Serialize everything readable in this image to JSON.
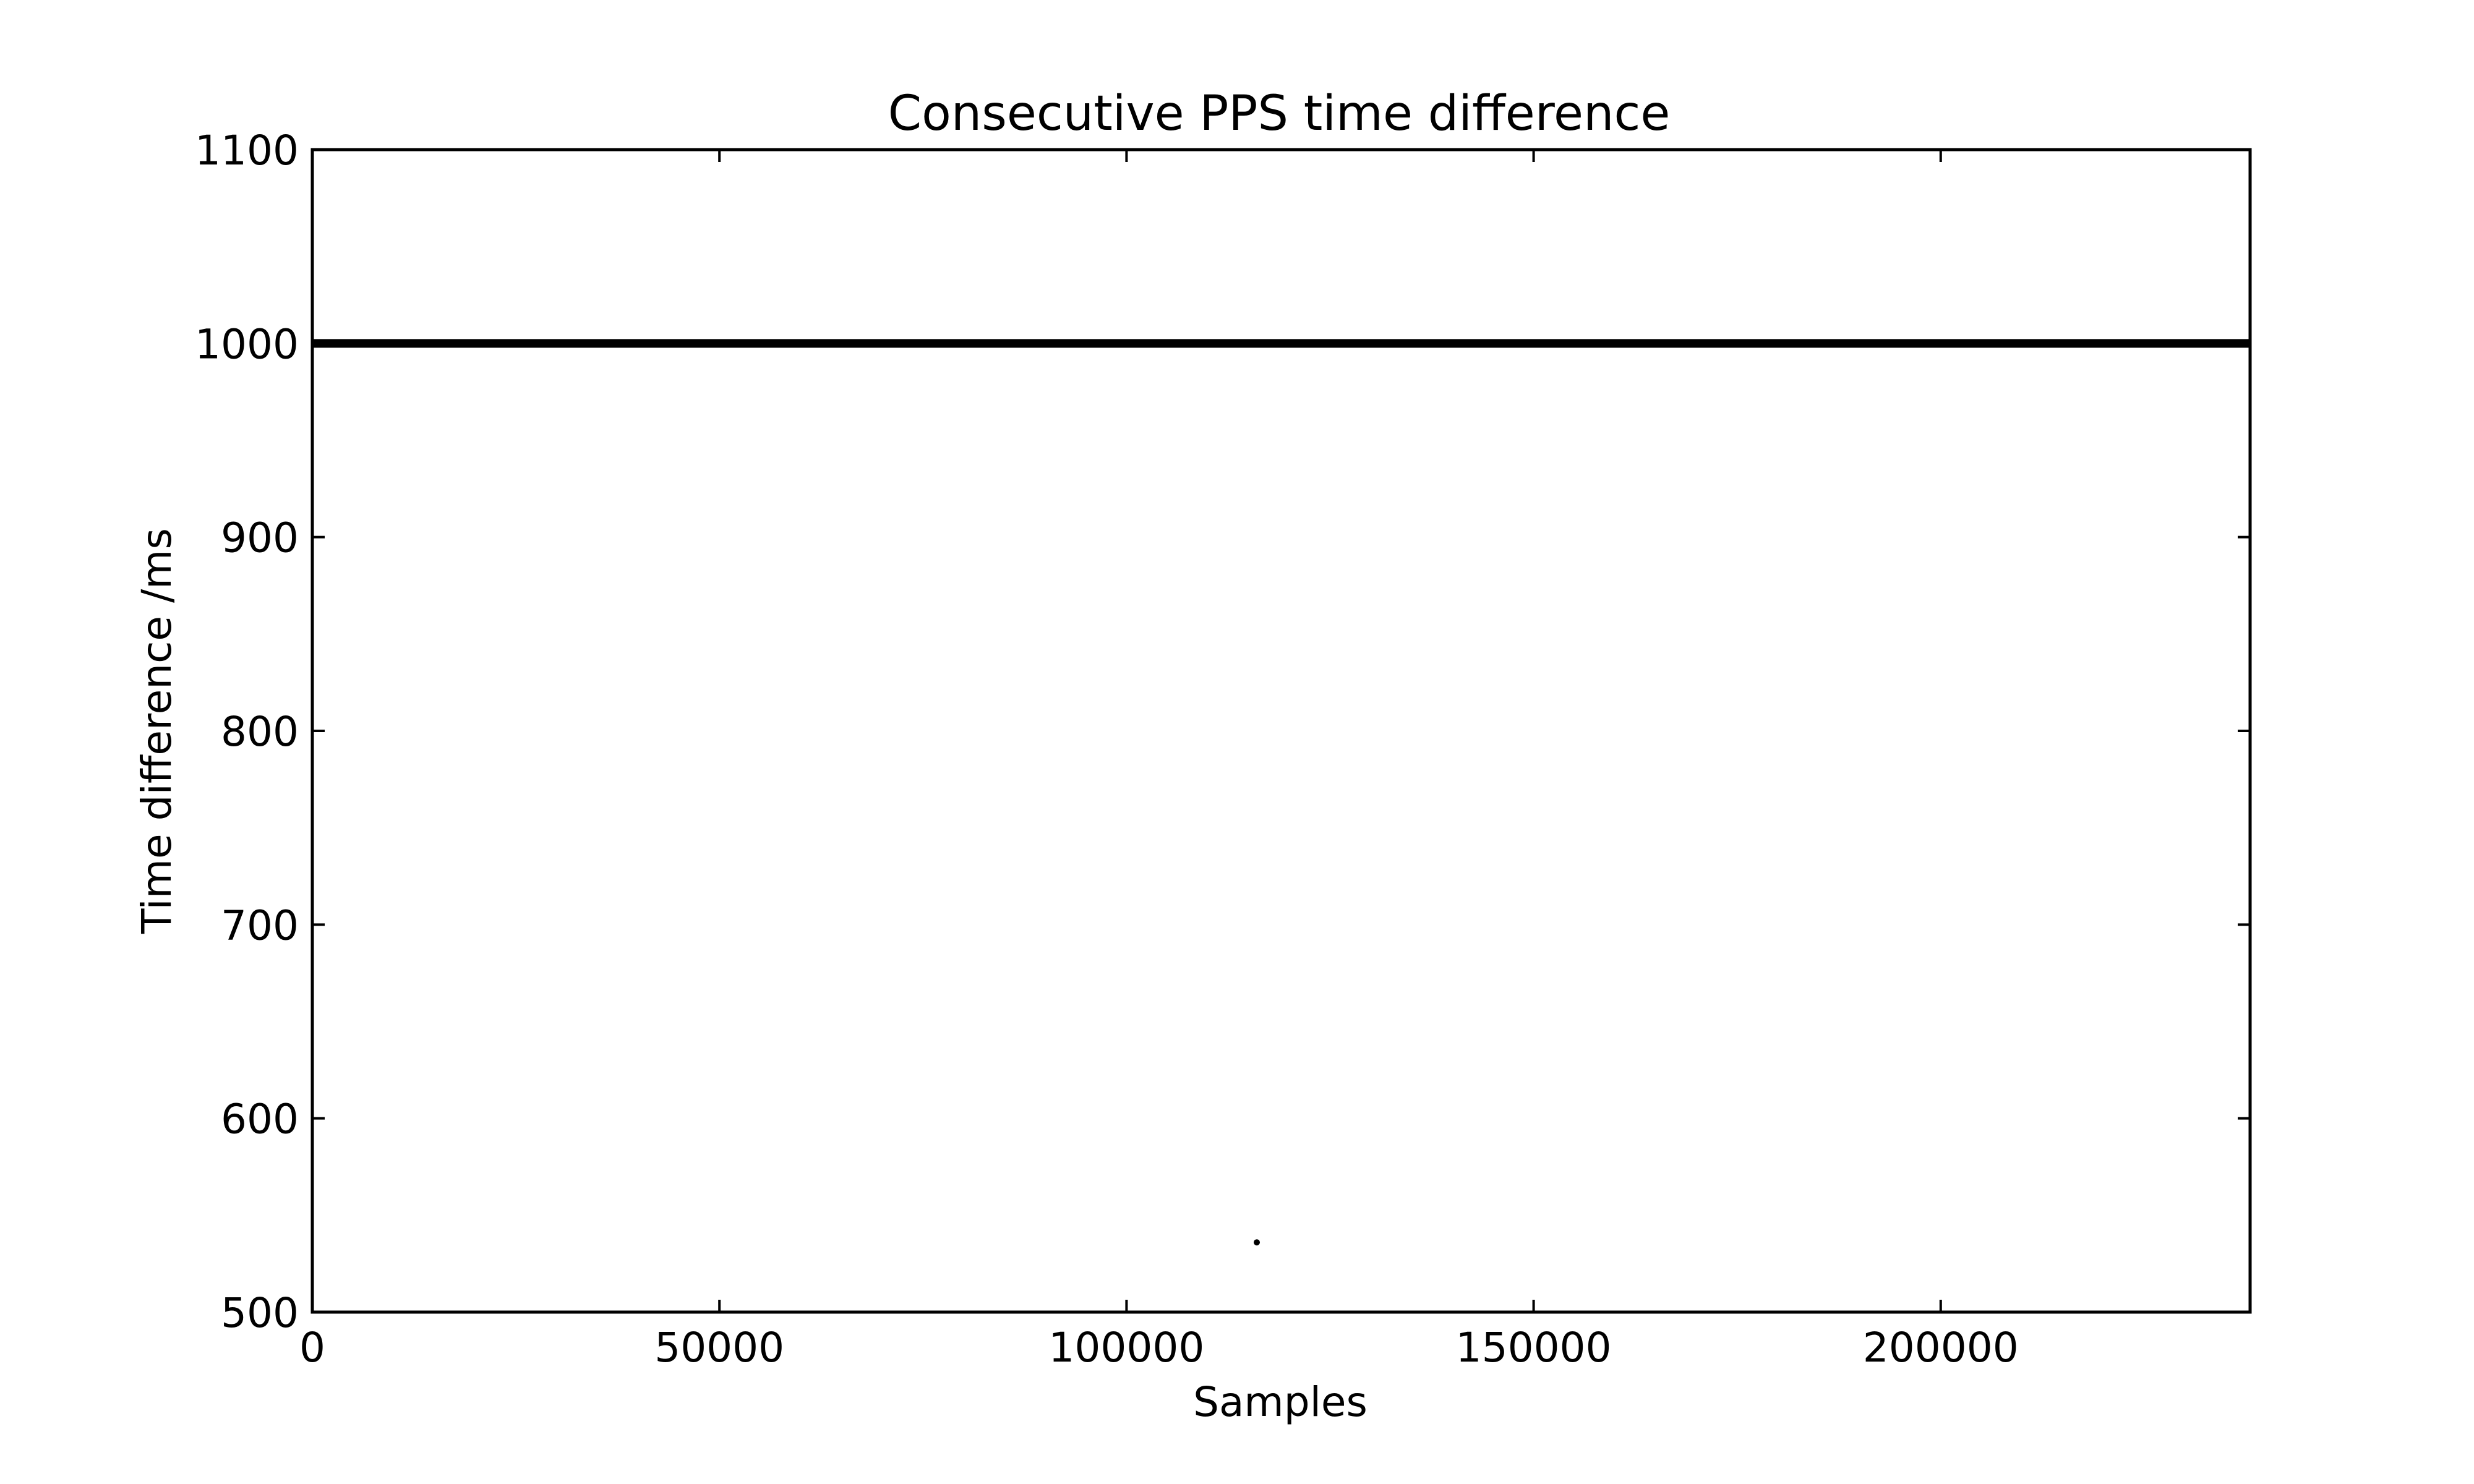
{
  "chart_data": {
    "type": "scatter",
    "title": "Consecutive PPS time difference",
    "xlabel": "Samples",
    "ylabel": "Time difference /ms",
    "xlim": [
      0,
      238000
    ],
    "ylim": [
      500,
      1100
    ],
    "xticks": [
      0,
      50000,
      100000,
      150000,
      200000
    ],
    "xtick_labels": [
      "0",
      "50000",
      "100000",
      "150000",
      "200000"
    ],
    "yticks": [
      500,
      600,
      700,
      800,
      900,
      1000,
      1100
    ],
    "ytick_labels": [
      "500",
      "600",
      "700",
      "800",
      "900",
      "1000",
      "1100"
    ],
    "grid": false,
    "legend": "none",
    "series": [
      {
        "color": "#000000",
        "marker": "point",
        "constant_run": {
          "x_start": 0,
          "x_end": 238000,
          "y": 1000
        },
        "outliers": [
          {
            "x": 116000,
            "y": 536
          }
        ]
      }
    ]
  }
}
